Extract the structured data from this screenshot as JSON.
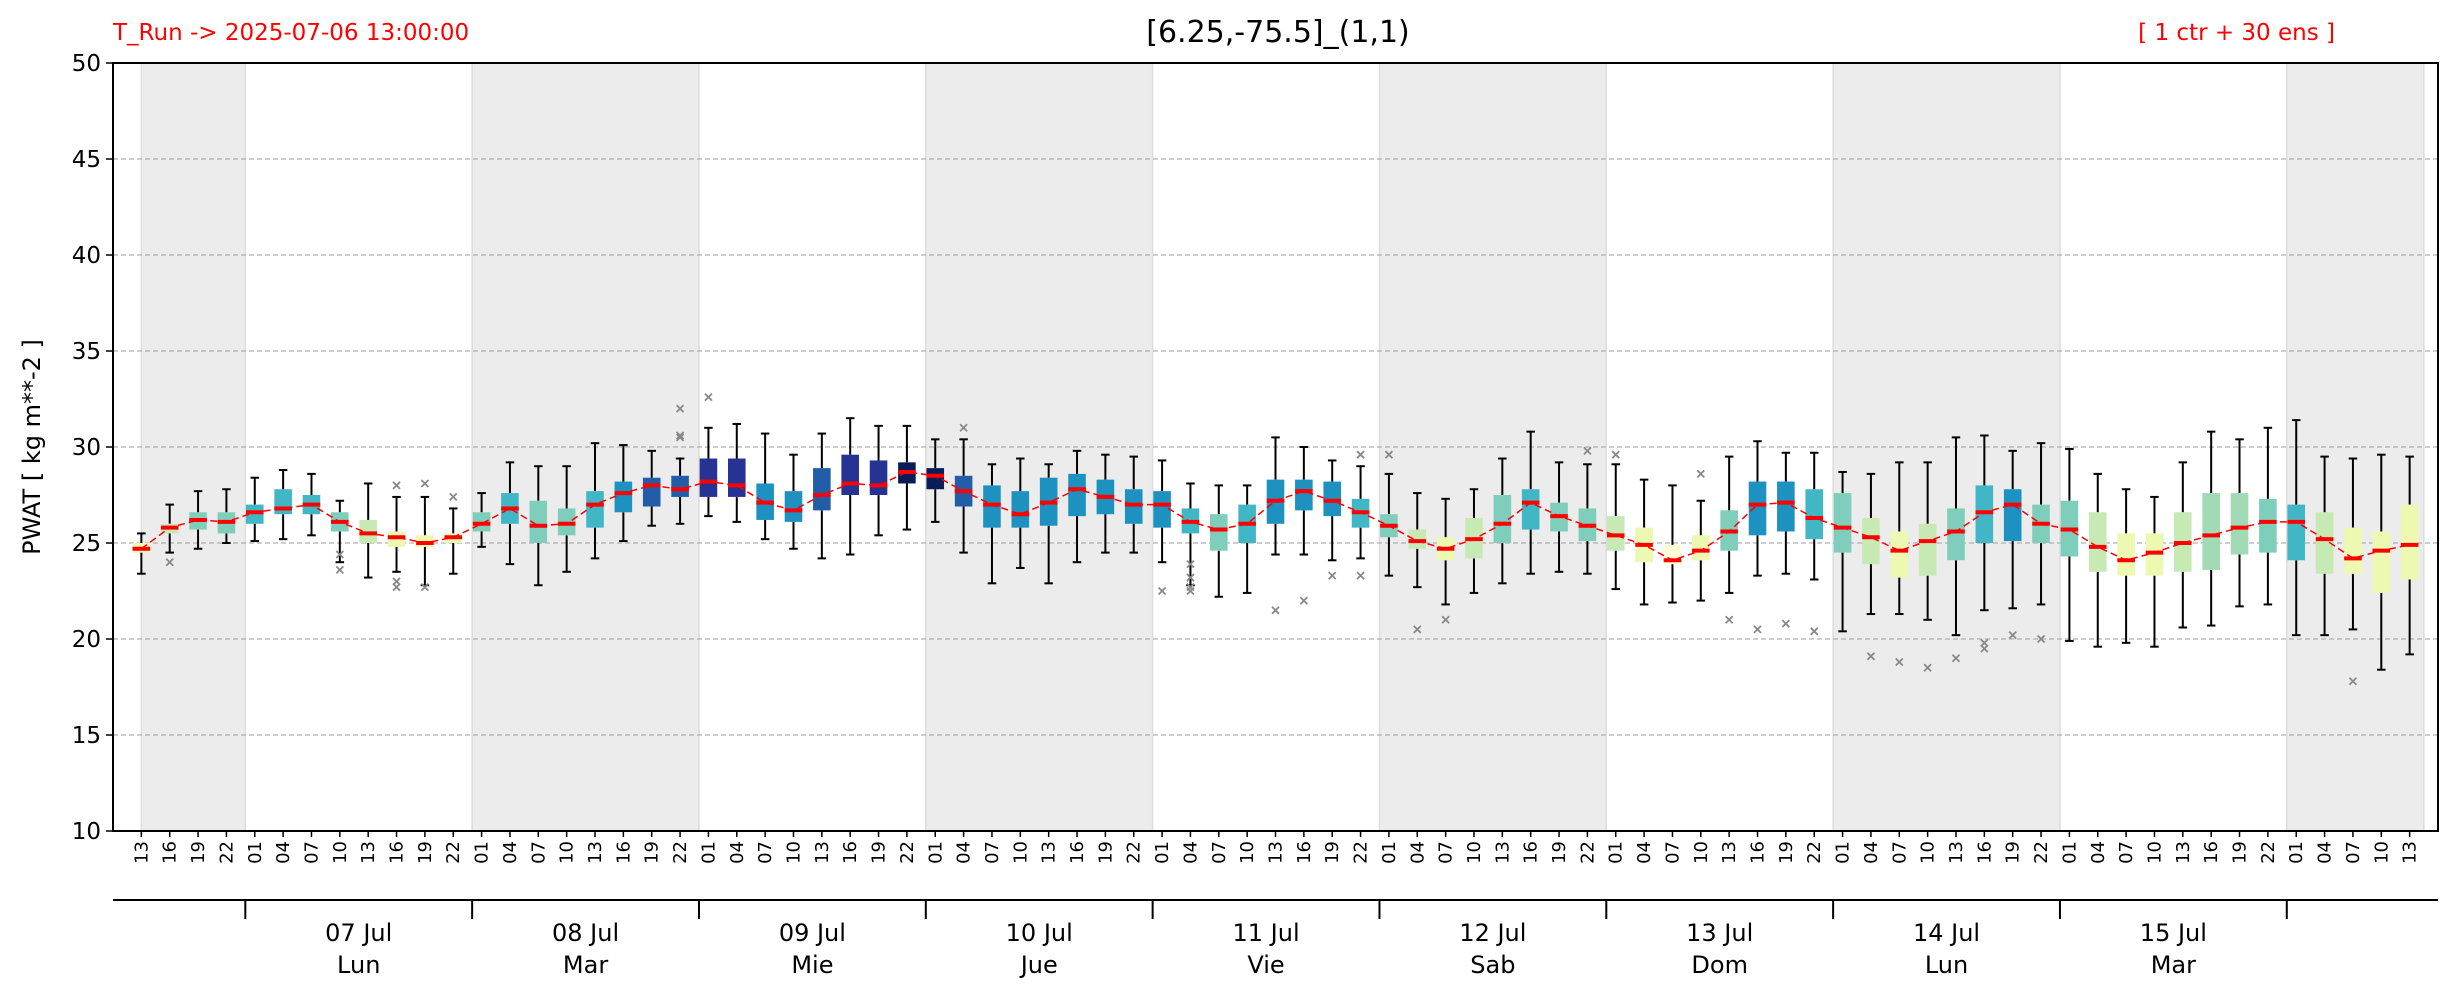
{
  "chart_data": {
    "type": "box",
    "title": "[6.25,-75.5]_(1,1)",
    "run_label": "T_Run -> 2025-07-06  13:00:00",
    "ens_label": "[ 1 ctr + 30 ens ]",
    "ylabel": "PWAT  [ kg m**-2 ]",
    "ylim": [
      10,
      50
    ],
    "yticks": [
      10,
      15,
      20,
      25,
      30,
      35,
      40,
      45,
      50
    ],
    "grid": true,
    "median_color": "#ff0000",
    "categories": [
      "13",
      "16",
      "19",
      "22",
      "01",
      "04",
      "07",
      "10",
      "13",
      "16",
      "19",
      "22",
      "01",
      "04",
      "07",
      "10",
      "13",
      "16",
      "19",
      "22",
      "01",
      "04",
      "07",
      "10",
      "13",
      "16",
      "19",
      "22",
      "01",
      "04",
      "07",
      "10",
      "13",
      "16",
      "19",
      "22",
      "01",
      "04",
      "07",
      "10",
      "13",
      "16",
      "19",
      "22",
      "01",
      "04",
      "07",
      "10",
      "13",
      "16",
      "19",
      "22",
      "01",
      "04",
      "07",
      "10",
      "13",
      "16",
      "19",
      "22",
      "01",
      "04",
      "07",
      "10",
      "13",
      "16",
      "19",
      "22",
      "01",
      "04",
      "07",
      "10",
      "13",
      "16",
      "19",
      "22",
      "01",
      "04",
      "07",
      "10",
      "13"
    ],
    "day_labels": [
      {
        "date": "07 Jul",
        "weekday": "Lun"
      },
      {
        "date": "08 Jul",
        "weekday": "Mar"
      },
      {
        "date": "09 Jul",
        "weekday": "Mie"
      },
      {
        "date": "10 Jul",
        "weekday": "Jue"
      },
      {
        "date": "11 Jul",
        "weekday": "Vie"
      },
      {
        "date": "12 Jul",
        "weekday": "Sab"
      },
      {
        "date": "13 Jul",
        "weekday": "Dom"
      },
      {
        "date": "14 Jul",
        "weekday": "Lun"
      },
      {
        "date": "15 Jul",
        "weekday": "Mar"
      }
    ],
    "boxes": {
      "med": [
        24.7,
        25.8,
        26.2,
        26.1,
        26.6,
        26.8,
        27.0,
        26.1,
        25.5,
        25.3,
        25.0,
        25.3,
        26.0,
        26.8,
        25.9,
        26.0,
        27.0,
        27.6,
        28.0,
        27.8,
        28.2,
        28.0,
        27.1,
        26.7,
        27.5,
        28.1,
        28.0,
        28.7,
        28.5,
        27.7,
        27.0,
        26.5,
        27.1,
        27.8,
        27.4,
        27.0,
        27.0,
        26.1,
        25.7,
        26.0,
        27.2,
        27.7,
        27.2,
        26.6,
        25.9,
        25.1,
        24.7,
        25.2,
        26.0,
        27.1,
        26.4,
        25.9,
        25.4,
        24.9,
        24.1,
        24.6,
        25.6,
        27.0,
        27.1,
        26.3,
        25.8,
        25.3,
        24.6,
        25.1,
        25.6,
        26.6,
        27.0,
        26.0,
        25.7,
        24.8,
        24.1,
        24.5,
        25.0,
        25.4,
        25.8,
        26.1,
        26.1,
        25.2,
        24.2,
        24.6,
        24.9
      ],
      "q1": [
        24.5,
        25.5,
        25.7,
        25.5,
        26.0,
        26.5,
        26.5,
        25.6,
        25.0,
        24.8,
        24.8,
        25.0,
        25.6,
        26.0,
        25.0,
        25.4,
        25.8,
        26.6,
        26.9,
        27.4,
        27.4,
        27.4,
        26.2,
        26.1,
        26.7,
        27.5,
        27.5,
        28.1,
        27.8,
        26.9,
        25.8,
        25.8,
        25.9,
        26.4,
        26.5,
        26.0,
        25.8,
        25.5,
        24.6,
        25.0,
        26.0,
        26.7,
        26.4,
        25.8,
        25.3,
        24.7,
        24.1,
        24.2,
        25.0,
        25.7,
        25.6,
        25.1,
        24.6,
        24.0,
        23.9,
        24.1,
        24.6,
        25.4,
        25.6,
        25.2,
        24.5,
        23.9,
        23.2,
        23.3,
        24.1,
        25.0,
        25.1,
        25.0,
        24.3,
        23.5,
        23.3,
        23.3,
        23.5,
        23.6,
        24.4,
        24.5,
        24.1,
        23.4,
        23.4,
        22.4,
        23.1
      ],
      "q3": [
        25.0,
        26.0,
        26.6,
        26.6,
        27.0,
        27.8,
        27.5,
        26.6,
        26.2,
        25.6,
        25.4,
        25.5,
        26.6,
        27.6,
        27.2,
        26.8,
        27.7,
        28.2,
        28.4,
        28.5,
        29.4,
        29.4,
        28.1,
        27.7,
        28.9,
        29.6,
        29.3,
        29.2,
        28.9,
        28.5,
        28.0,
        27.7,
        28.4,
        28.6,
        28.3,
        27.8,
        27.7,
        26.8,
        26.5,
        27.0,
        28.3,
        28.3,
        28.2,
        27.3,
        26.5,
        25.7,
        25.3,
        26.3,
        27.5,
        27.8,
        27.1,
        26.8,
        26.4,
        25.8,
        24.9,
        25.4,
        26.7,
        28.2,
        28.2,
        27.8,
        27.6,
        26.3,
        25.6,
        26.0,
        26.8,
        28.0,
        27.8,
        27.0,
        27.2,
        26.6,
        25.5,
        25.5,
        26.6,
        27.6,
        27.6,
        27.3,
        27.0,
        26.6,
        25.8,
        25.6,
        27.0
      ],
      "whislo": [
        23.4,
        24.5,
        24.7,
        25.0,
        25.1,
        25.2,
        25.4,
        24.0,
        23.2,
        23.5,
        22.8,
        23.4,
        24.8,
        23.9,
        22.8,
        23.5,
        24.2,
        25.1,
        25.9,
        26.0,
        26.4,
        26.1,
        25.2,
        24.7,
        24.2,
        24.4,
        25.4,
        25.7,
        26.1,
        24.5,
        22.9,
        23.7,
        22.9,
        24.0,
        24.5,
        24.5,
        24.0,
        22.8,
        22.2,
        22.4,
        24.4,
        24.4,
        24.1,
        24.2,
        23.3,
        22.7,
        21.8,
        22.4,
        22.9,
        23.4,
        23.5,
        23.4,
        22.6,
        21.8,
        21.9,
        22.0,
        22.4,
        23.3,
        23.4,
        23.1,
        20.4,
        21.3,
        21.3,
        21.0,
        20.2,
        21.5,
        21.6,
        21.8,
        19.9,
        19.6,
        19.8,
        19.6,
        20.6,
        20.7,
        21.7,
        21.8,
        20.2,
        20.2,
        20.5,
        18.4,
        19.2
      ],
      "whishi": [
        25.5,
        27.0,
        27.7,
        27.8,
        28.4,
        28.8,
        28.6,
        27.2,
        28.1,
        27.4,
        27.4,
        26.8,
        27.6,
        29.2,
        29.0,
        29.0,
        30.2,
        30.1,
        29.8,
        29.4,
        31.0,
        31.2,
        30.7,
        29.6,
        30.7,
        31.5,
        31.1,
        31.1,
        30.4,
        30.4,
        29.1,
        29.4,
        29.1,
        29.8,
        29.6,
        29.5,
        29.3,
        28.1,
        28.0,
        28.0,
        30.5,
        30.0,
        29.3,
        29.0,
        28.6,
        27.6,
        27.3,
        27.8,
        29.4,
        30.8,
        29.2,
        29.1,
        29.1,
        28.3,
        28.0,
        27.2,
        29.5,
        30.3,
        29.7,
        29.7,
        28.7,
        28.6,
        29.2,
        29.2,
        30.5,
        30.6,
        29.8,
        30.2,
        29.9,
        28.6,
        27.8,
        27.4,
        29.2,
        30.8,
        30.4,
        31.0,
        31.4,
        29.5,
        29.4,
        29.6,
        29.5
      ],
      "fliers": [
        [],
        [
          24.0
        ],
        [],
        [],
        [],
        [],
        [],
        [
          24.4,
          23.6
        ],
        [],
        [
          28.0,
          23.0,
          22.7
        ],
        [
          28.1,
          22.7
        ],
        [
          27.4
        ],
        [],
        [],
        [],
        [],
        [],
        [],
        [],
        [
          32.0,
          30.6,
          30.5
        ],
        [
          32.6
        ],
        [],
        [],
        [],
        [],
        [],
        [],
        [],
        [],
        [
          31.0
        ],
        [],
        [],
        [],
        [],
        [],
        [],
        [
          22.5
        ],
        [
          23.9,
          23.2,
          22.7,
          22.5
        ],
        [],
        [],
        [
          21.5
        ],
        [
          22.0
        ],
        [
          23.3
        ],
        [
          29.6,
          23.3
        ],
        [
          29.6
        ],
        [
          20.5
        ],
        [
          21.0
        ],
        [],
        [],
        [],
        [],
        [
          29.8
        ],
        [
          29.6
        ],
        [],
        [],
        [
          28.6
        ],
        [
          21.0
        ],
        [
          20.5
        ],
        [
          20.8
        ],
        [
          20.4
        ],
        [],
        [
          19.1
        ],
        [
          18.8
        ],
        [
          18.5
        ],
        [
          19.0
        ],
        [
          19.8,
          19.5
        ],
        [
          20.2
        ],
        [
          20.0
        ],
        [],
        [],
        [],
        [],
        [],
        [],
        [],
        [],
        [],
        [],
        [
          17.8
        ],
        [],
        []
      ],
      "colors": [
        "#edf8b1",
        "#c7e9b4",
        "#7fcdbb",
        "#7fcdbb",
        "#41b6c4",
        "#41b6c4",
        "#41b6c4",
        "#7fcdbb",
        "#c7e9b4",
        "#edf8b1",
        "#edf8b1",
        "#edf8b1",
        "#7fcdbb",
        "#41b6c4",
        "#7fcdbb",
        "#7fcdbb",
        "#41b6c4",
        "#1d91c0",
        "#225ea8",
        "#225ea8",
        "#253494",
        "#253494",
        "#1d91c0",
        "#1d91c0",
        "#225ea8",
        "#253494",
        "#253494",
        "#081d58",
        "#081d58",
        "#225ea8",
        "#1d91c0",
        "#1d91c0",
        "#1d91c0",
        "#1d91c0",
        "#1d91c0",
        "#1d91c0",
        "#1d91c0",
        "#41b6c4",
        "#7fcdbb",
        "#41b6c4",
        "#1d91c0",
        "#1d91c0",
        "#1d91c0",
        "#41b6c4",
        "#7fcdbb",
        "#c7e9b4",
        "#edf8b1",
        "#c7e9b4",
        "#7fcdbb",
        "#41b6c4",
        "#7fcdbb",
        "#7fcdbb",
        "#c7e9b4",
        "#edf8b1",
        "#ffffd9",
        "#edf8b1",
        "#7fcdbb",
        "#1d91c0",
        "#1d91c0",
        "#41b6c4",
        "#7fcdbb",
        "#c7e9b4",
        "#edf8b1",
        "#c7e9b4",
        "#7fcdbb",
        "#41b6c4",
        "#1d91c0",
        "#7fcdbb",
        "#7fcdbb",
        "#c7e9b4",
        "#edf8b1",
        "#edf8b1",
        "#c7e9b4",
        "#a1dab4",
        "#a1dab4",
        "#7fcdbb",
        "#41b6c4",
        "#c7e9b4",
        "#edf8b1",
        "#edf8b1",
        "#edf8b1"
      ]
    }
  }
}
